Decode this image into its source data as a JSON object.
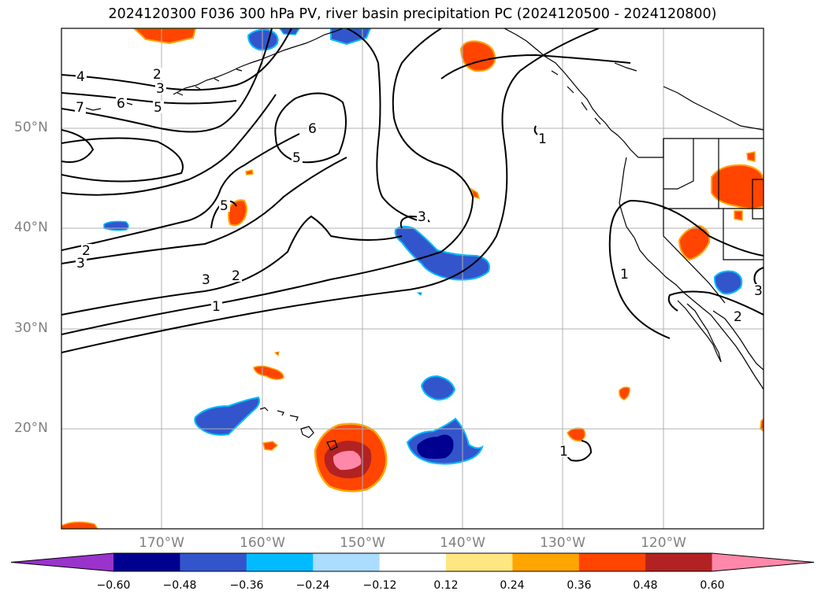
{
  "title": "2024120300 F036 300 hPa PV, river basin precipitation PC (2024120500 - 2024120800)",
  "lat_labels": [
    "50°N",
    "40°N",
    "30°N",
    "20°N"
  ],
  "lon_labels": [
    "170°W",
    "160°W",
    "150°W",
    "140°W",
    "130°W",
    "120°W"
  ],
  "contour_labels": [
    "4",
    "2",
    "3",
    "7",
    "6",
    "5",
    "6",
    "5",
    "1",
    "5",
    "3",
    "2",
    "3",
    "3",
    "2",
    "1",
    "1",
    "2",
    "1",
    "3"
  ],
  "colorbar": {
    "ticks": [
      "−0.60",
      "−0.48",
      "−0.36",
      "−0.24",
      "−0.12",
      "0.12",
      "0.24",
      "0.36",
      "0.48",
      "0.60"
    ],
    "colors": [
      "#9933cc",
      "#000090",
      "#3355cc",
      "#00bbff",
      "#aaddff",
      "#ffffff",
      "#ffe680",
      "#ffa500",
      "#ff4500",
      "#b22222",
      "#ff88aa"
    ]
  }
}
